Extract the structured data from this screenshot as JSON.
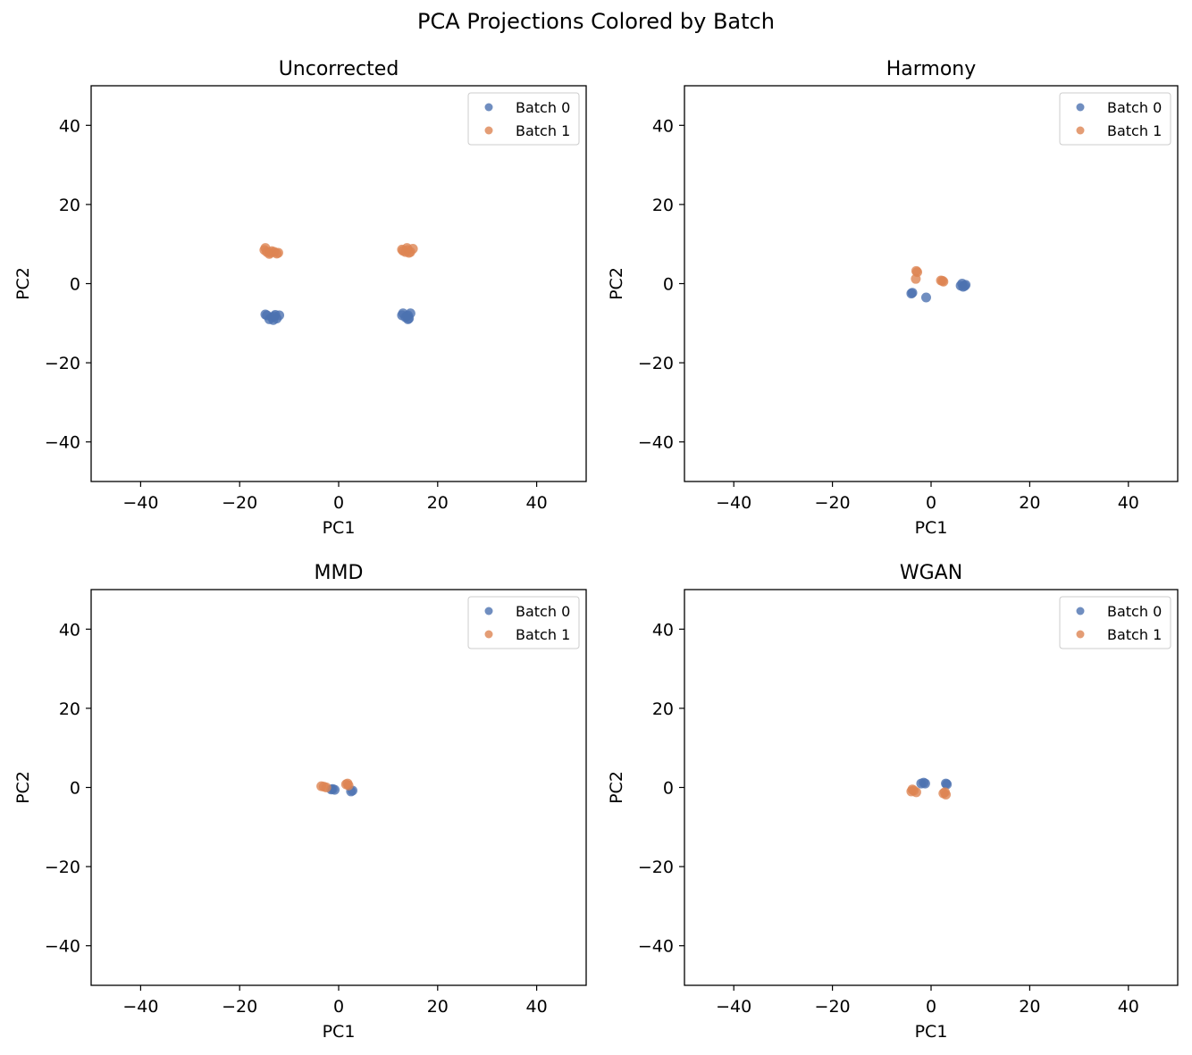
{
  "figure": {
    "title": "PCA Projections Colored by Batch"
  },
  "colors": {
    "batch0": "#4c72b0",
    "batch1": "#dd8452"
  },
  "chart_data": [
    {
      "type": "scatter",
      "title": "Uncorrected",
      "xlabel": "PC1",
      "ylabel": "PC2",
      "xlim": [
        -50,
        50
      ],
      "ylim": [
        -50,
        50
      ],
      "xticks": [
        -40,
        -20,
        0,
        20,
        40
      ],
      "yticks": [
        -40,
        -20,
        0,
        20,
        40
      ],
      "grid": false,
      "legend": "top-right",
      "series": [
        {
          "name": "Batch 0",
          "points": [
            [
              -14.5,
              -8.0
            ],
            [
              -14.0,
              -9.0
            ],
            [
              -13.5,
              -8.5
            ],
            [
              -13.0,
              -8.2
            ],
            [
              -12.5,
              -8.8
            ],
            [
              -12.0,
              -8.0
            ],
            [
              -14.8,
              -7.8
            ],
            [
              -13.2,
              -9.2
            ],
            [
              -12.8,
              -7.9
            ],
            [
              13.0,
              -7.5
            ],
            [
              13.5,
              -8.5
            ],
            [
              14.0,
              -8.0
            ],
            [
              14.5,
              -7.5
            ],
            [
              14.0,
              -9.0
            ],
            [
              13.8,
              -8.2
            ],
            [
              14.2,
              -8.8
            ],
            [
              12.8,
              -8.0
            ]
          ]
        },
        {
          "name": "Batch 1",
          "points": [
            [
              -15.0,
              8.5
            ],
            [
              -14.5,
              8.0
            ],
            [
              -14.0,
              7.5
            ],
            [
              -13.5,
              8.2
            ],
            [
              -13.0,
              8.0
            ],
            [
              -12.5,
              7.6
            ],
            [
              -14.8,
              9.0
            ],
            [
              -13.8,
              7.8
            ],
            [
              -12.2,
              7.8
            ],
            [
              13.0,
              8.3
            ],
            [
              13.5,
              8.0
            ],
            [
              14.0,
              8.5
            ],
            [
              14.5,
              8.0
            ],
            [
              15.0,
              8.8
            ],
            [
              13.8,
              9.0
            ],
            [
              14.2,
              7.8
            ],
            [
              12.8,
              8.6
            ]
          ]
        }
      ]
    },
    {
      "type": "scatter",
      "title": "Harmony",
      "xlabel": "PC1",
      "ylabel": "PC2",
      "xlim": [
        -50,
        50
      ],
      "ylim": [
        -50,
        50
      ],
      "xticks": [
        -40,
        -20,
        0,
        20,
        40
      ],
      "yticks": [
        -40,
        -20,
        0,
        20,
        40
      ],
      "grid": false,
      "legend": "top-right",
      "series": [
        {
          "name": "Batch 0",
          "points": [
            [
              -4.0,
              -2.5
            ],
            [
              -3.8,
              -2.3
            ],
            [
              -1.0,
              -3.5
            ],
            [
              6.0,
              -0.5
            ],
            [
              6.5,
              -0.8
            ],
            [
              7.0,
              -0.3
            ],
            [
              6.3,
              0.0
            ],
            [
              6.8,
              -0.6
            ]
          ]
        },
        {
          "name": "Batch 1",
          "points": [
            [
              -3.0,
              3.2
            ],
            [
              -2.8,
              2.9
            ],
            [
              -3.1,
              1.2
            ],
            [
              2.0,
              0.8
            ],
            [
              2.5,
              0.5
            ],
            [
              2.3,
              0.7
            ]
          ]
        }
      ]
    },
    {
      "type": "scatter",
      "title": "MMD",
      "xlabel": "PC1",
      "ylabel": "PC2",
      "xlim": [
        -50,
        50
      ],
      "ylim": [
        -50,
        50
      ],
      "xticks": [
        -40,
        -20,
        0,
        20,
        40
      ],
      "yticks": [
        -40,
        -20,
        0,
        20,
        40
      ],
      "grid": false,
      "legend": "top-right",
      "series": [
        {
          "name": "Batch 0",
          "points": [
            [
              -1.5,
              -0.5
            ],
            [
              -0.8,
              -0.6
            ],
            [
              -1.2,
              -0.4
            ],
            [
              2.5,
              -1.0
            ],
            [
              2.8,
              -0.8
            ]
          ]
        },
        {
          "name": "Batch 1",
          "points": [
            [
              -3.5,
              0.3
            ],
            [
              -3.0,
              0.2
            ],
            [
              -2.5,
              0.0
            ],
            [
              1.8,
              1.0
            ],
            [
              2.0,
              0.5
            ],
            [
              1.5,
              0.8
            ]
          ]
        }
      ]
    },
    {
      "type": "scatter",
      "title": "WGAN",
      "xlabel": "PC1",
      "ylabel": "PC2",
      "xlim": [
        -50,
        50
      ],
      "ylim": [
        -50,
        50
      ],
      "xticks": [
        -40,
        -20,
        0,
        20,
        40
      ],
      "yticks": [
        -40,
        -20,
        0,
        20,
        40
      ],
      "grid": false,
      "legend": "top-right",
      "series": [
        {
          "name": "Batch 0",
          "points": [
            [
              -2.0,
              1.0
            ],
            [
              -1.5,
              1.2
            ],
            [
              -1.2,
              1.0
            ],
            [
              3.0,
              1.0
            ],
            [
              3.2,
              0.8
            ]
          ]
        },
        {
          "name": "Batch 1",
          "points": [
            [
              -4.0,
              -1.0
            ],
            [
              -3.5,
              -0.8
            ],
            [
              -3.0,
              -1.2
            ],
            [
              -3.8,
              -0.5
            ],
            [
              2.5,
              -1.5
            ],
            [
              3.0,
              -1.8
            ],
            [
              2.8,
              -1.2
            ]
          ]
        }
      ]
    }
  ]
}
